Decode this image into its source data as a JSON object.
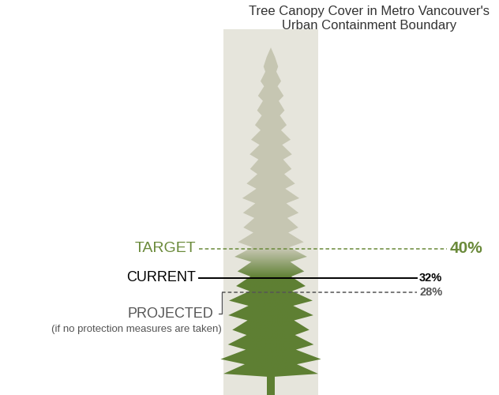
{
  "chart_data": {
    "type": "level",
    "title": "Tree Canopy Cover in Metro Vancouver's Urban Containment Boundary",
    "series": [
      {
        "name": "TARGET",
        "color": "#6a8a3a",
        "values": [
          40
        ],
        "value_labels": [
          "40%"
        ],
        "line_style": "dashed"
      },
      {
        "name": "CURRENT",
        "color": "#000000",
        "values": [
          32
        ],
        "value_labels": [
          "32%"
        ],
        "line_style": "solid"
      },
      {
        "name": "PROJECTED",
        "color": "#555555",
        "values": [
          28
        ],
        "value_labels": [
          "28%"
        ],
        "line_style": "dashed",
        "annotation": "(if no protection measures are taken)"
      }
    ],
    "ylim": [
      0,
      100
    ],
    "tick_labels": false
  }
}
